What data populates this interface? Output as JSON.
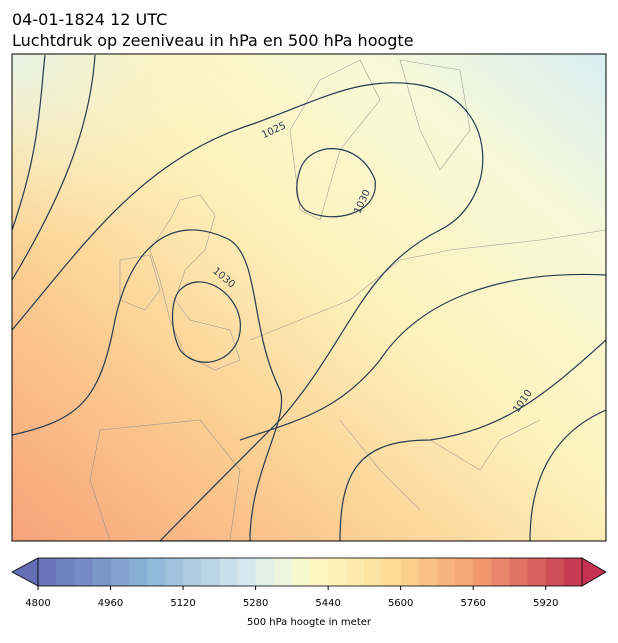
{
  "title": {
    "line1": "04-01-1824 12 UTC",
    "line2": "Luchtdruk op zeeniveau in hPa en 500 hPa hoogte"
  },
  "map": {
    "contour_labels": [
      "1025",
      "1030",
      "1030",
      "1010"
    ]
  },
  "colorbar": {
    "lim": [
      4800,
      6000
    ],
    "ticks": [
      4800,
      4960,
      5120,
      5280,
      5440,
      5600,
      5760,
      5920
    ],
    "label": "500 hPa hoogte in meter"
  }
}
